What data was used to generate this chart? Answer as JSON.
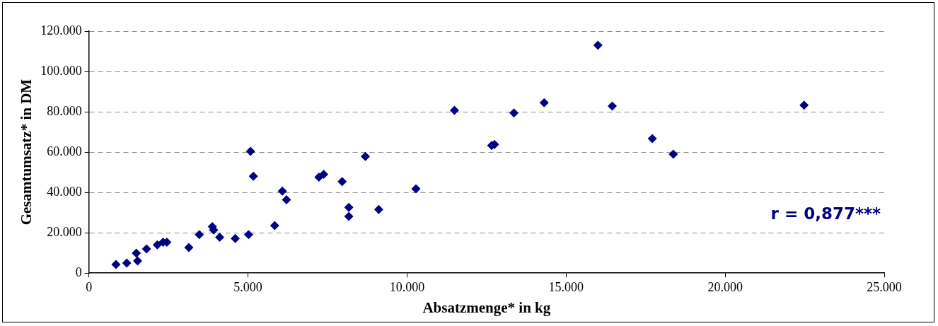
{
  "chart_data": {
    "type": "scatter",
    "xlabel": "Absatzmenge* in kg",
    "ylabel": "Gesamtumsatz* in DM",
    "annotations": [
      "r = 0,877***"
    ],
    "series": [
      {
        "color": "#000080",
        "x": [
          850,
          1190,
          1490,
          1530,
          1810,
          2150,
          2330,
          2450,
          3140,
          3470,
          3880,
          3920,
          4110,
          4600,
          5020,
          5170,
          5840,
          6080,
          6210,
          7230,
          7380,
          7960,
          8170,
          8170,
          9110,
          5080,
          14310,
          11490,
          13360,
          12660,
          12750,
          8690,
          10280,
          16000,
          16450,
          17710,
          18370,
          22480
        ],
        "values": [
          4300,
          5000,
          9900,
          6000,
          12000,
          14000,
          15300,
          15300,
          12700,
          19100,
          23000,
          21400,
          17800,
          17200,
          19100,
          48000,
          23600,
          40700,
          36400,
          47600,
          49000,
          45400,
          32600,
          28100,
          31500,
          60400,
          84500,
          80700,
          79400,
          63300,
          63800,
          57800,
          41800,
          113000,
          82800,
          66700,
          59000,
          83300
        ]
      }
    ],
    "xlim": [
      0,
      25000
    ],
    "xticks": [
      0,
      {
        "value": 5000,
        "label": "5.000"
      },
      {
        "value": 10000,
        "label": "10.000"
      },
      {
        "value": 15000,
        "label": "15.000"
      },
      {
        "value": 20000,
        "label": "20.000"
      },
      {
        "value": 25000,
        "label": "25.000"
      }
    ],
    "ylim": [
      0,
      120000
    ],
    "yticks": [
      0,
      {
        "value": 20000,
        "label": "20.000"
      },
      {
        "value": 40000,
        "label": "40.000"
      },
      {
        "value": 60000,
        "label": "60.000"
      },
      {
        "value": 80000,
        "label": "80.000"
      },
      {
        "value": 100000,
        "label": "100.000"
      },
      {
        "value": 120000,
        "label": "120.000"
      }
    ],
    "grid": "y",
    "legend": false,
    "marker": "diamond"
  }
}
